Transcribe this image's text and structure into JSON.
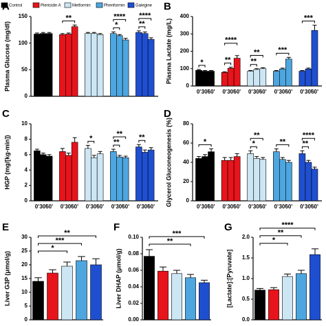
{
  "chart_data": [
    {
      "type": "grouped-bar",
      "label": "A",
      "ylabel": "Plasma Glucose (mg/dl)",
      "ylim": [
        0,
        150
      ],
      "yticks": [
        0,
        50,
        100,
        150
      ],
      "series": [
        {
          "name": "Control",
          "color": "#000000",
          "values": [
            117,
            118,
            118
          ],
          "errors": [
            2,
            2,
            2
          ]
        },
        {
          "name": "Piericidin A",
          "color": "#e8141c",
          "values": [
            116,
            117,
            131
          ],
          "errors": [
            2,
            2,
            3
          ]
        },
        {
          "name": "Metformin",
          "color": "#cce6f4",
          "values": [
            118,
            118,
            116
          ],
          "errors": [
            2,
            2,
            2
          ]
        },
        {
          "name": "Phenformin",
          "color": "#4da6df",
          "values": [
            118,
            114,
            106
          ],
          "errors": [
            3,
            2,
            3
          ]
        },
        {
          "name": "Galegine",
          "color": "#1f4fd1",
          "values": [
            120,
            118,
            107
          ],
          "errors": [
            3,
            3,
            3
          ]
        }
      ],
      "annotations": [
        "**",
        "****",
        "*",
        "****",
        "**"
      ]
    },
    {
      "type": "grouped-bar",
      "label": "B",
      "ylabel": "Plasma Lactate (mg/L)",
      "ylim": [
        0,
        400
      ],
      "yticks": [
        0,
        100,
        200,
        300,
        400
      ],
      "categories": [
        "0'",
        "30'",
        "60'"
      ],
      "series": [
        {
          "color": "#000000",
          "values": [
            90,
            85,
            85
          ],
          "errors": [
            5,
            4,
            4
          ]
        },
        {
          "color": "#e8141c",
          "values": [
            78,
            102,
            160
          ],
          "errors": [
            4,
            6,
            15
          ]
        },
        {
          "color": "#cce6f4",
          "values": [
            85,
            95,
            100
          ],
          "errors": [
            4,
            5,
            5
          ]
        },
        {
          "color": "#4da6df",
          "values": [
            85,
            98,
            155
          ],
          "errors": [
            4,
            5,
            10
          ]
        },
        {
          "color": "#1f4fd1",
          "values": [
            85,
            98,
            320
          ],
          "errors": [
            4,
            5,
            30
          ]
        }
      ],
      "annotations": [
        "*",
        "**",
        "****",
        "**",
        "**",
        "***",
        "***"
      ]
    },
    {
      "type": "grouped-bar",
      "label": "C",
      "ylabel": "HGP (mg/[kg-min])",
      "ylim": [
        0,
        10
      ],
      "yticks": [
        0,
        2,
        4,
        6,
        8,
        10
      ],
      "categories": [
        "0'",
        "30'",
        "60'"
      ],
      "series": [
        {
          "color": "#000000",
          "values": [
            6.5,
            6.0,
            5.8
          ],
          "errors": [
            0.2,
            0.2,
            0.2
          ]
        },
        {
          "color": "#e8141c",
          "values": [
            6.4,
            5.9,
            7.6
          ],
          "errors": [
            0.4,
            0.3,
            0.6
          ]
        },
        {
          "color": "#cce6f4",
          "values": [
            6.8,
            5.6,
            6.1
          ],
          "errors": [
            0.4,
            0.3,
            0.3
          ]
        },
        {
          "color": "#4da6df",
          "values": [
            6.4,
            5.7,
            5.6
          ],
          "errors": [
            0.3,
            0.2,
            0.2
          ]
        },
        {
          "color": "#1f4fd1",
          "values": [
            7.0,
            6.3,
            6.6
          ],
          "errors": [
            0.3,
            0.3,
            0.3
          ]
        }
      ],
      "annotations": [
        "*",
        "**",
        "**",
        "**"
      ]
    },
    {
      "type": "grouped-bar",
      "label": "D",
      "ylabel": "Glycerol Gluconeogenesis (%)",
      "ylim": [
        0,
        80
      ],
      "yticks": [
        0,
        20,
        40,
        60,
        80
      ],
      "categories": [
        "0'",
        "30'",
        "60'"
      ],
      "series": [
        {
          "color": "#000000",
          "values": [
            44,
            46,
            51
          ],
          "errors": [
            2,
            2,
            3
          ]
        },
        {
          "color": "#e8141c",
          "values": [
            42,
            42,
            46
          ],
          "errors": [
            3,
            3,
            3
          ]
        },
        {
          "color": "#cce6f4",
          "values": [
            49,
            44,
            43
          ],
          "errors": [
            3,
            2,
            2
          ]
        },
        {
          "color": "#4da6df",
          "values": [
            51,
            43,
            40
          ],
          "errors": [
            3,
            2,
            2
          ]
        },
        {
          "color": "#1f4fd1",
          "values": [
            49,
            40,
            33
          ],
          "errors": [
            3,
            2,
            2
          ]
        }
      ],
      "annotations": [
        "*",
        "*",
        "**",
        "**",
        "****",
        "**"
      ]
    },
    {
      "type": "bar",
      "label": "E",
      "ylabel": "Liver G3P (μmol/g)",
      "ylim": [
        0,
        30
      ],
      "yticks": [
        0,
        5,
        10,
        15,
        20,
        25,
        30
      ],
      "values": [
        14,
        17,
        19.5,
        21.5,
        20
      ],
      "errors": [
        1.3,
        1.2,
        1.5,
        1.5,
        2.2
      ],
      "colors": [
        "#000000",
        "#e8141c",
        "#cce6f4",
        "#4da6df",
        "#1f4fd1"
      ],
      "annotations": [
        "*",
        "***",
        "**"
      ]
    },
    {
      "type": "bar",
      "label": "F",
      "ylabel": "Liver DHAP (μmol/g)",
      "ylim": [
        0,
        0.1
      ],
      "yticks": [
        {
          "value": 0,
          "label": "0.00"
        },
        0.02,
        0.04,
        0.06,
        0.08,
        {
          "value": 0.1,
          "label": "0.10"
        }
      ],
      "values": [
        0.077,
        0.059,
        0.056,
        0.051,
        0.045
      ],
      "errors": [
        0.008,
        0.005,
        0.004,
        0.004,
        0.003
      ],
      "colors": [
        "#000000",
        "#e8141c",
        "#cce6f4",
        "#4da6df",
        "#1f4fd1"
      ],
      "annotations": [
        "**",
        "***"
      ]
    },
    {
      "type": "bar",
      "label": "G",
      "ylabel": "[Lactate]:[Pyruvate]",
      "ylim": [
        0,
        2
      ],
      "yticks": [
        {
          "value": 0,
          "label": "0.0"
        },
        0.5,
        {
          "value": 1,
          "label": "1.0"
        },
        1.5,
        {
          "value": 2,
          "label": "2.0"
        }
      ],
      "values": [
        0.72,
        0.73,
        1.05,
        1.12,
        1.58
      ],
      "errors": [
        0.04,
        0.05,
        0.06,
        0.08,
        0.14
      ],
      "colors": [
        "#000000",
        "#e8141c",
        "#cce6f4",
        "#4da6df",
        "#1f4fd1"
      ],
      "annotations": [
        "*",
        "**",
        "****"
      ]
    }
  ]
}
